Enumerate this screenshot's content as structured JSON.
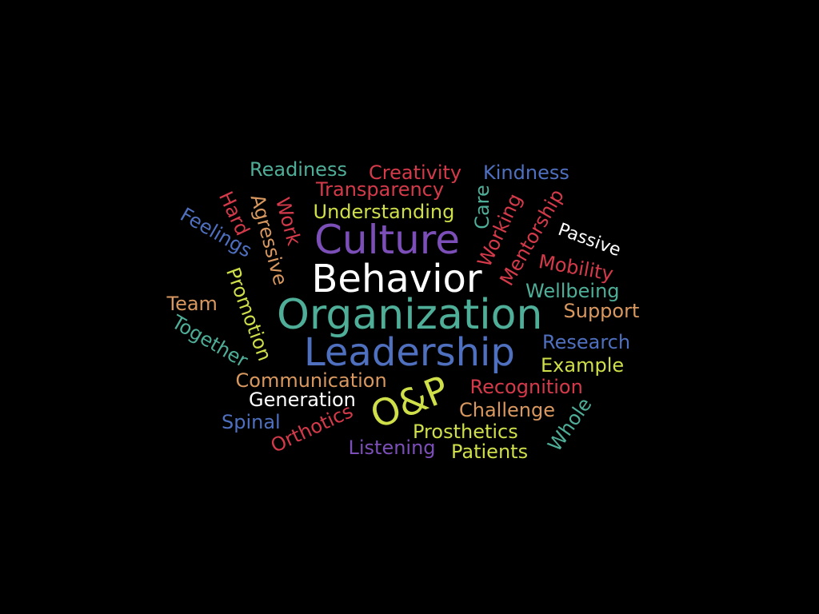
{
  "palette": {
    "background": "#000000",
    "teal": "#4fae98",
    "red": "#d43a4a",
    "blue": "#4f6fbf",
    "purple": "#7c4fb8",
    "lime": "#cfdf4a",
    "orange": "#d9985f",
    "white": "#ffffff"
  },
  "words": [
    {
      "id": "culture",
      "text": "Culture",
      "color": "purple"
    },
    {
      "id": "behavior",
      "text": "Behavior",
      "color": "white"
    },
    {
      "id": "organization",
      "text": "Organization",
      "color": "teal"
    },
    {
      "id": "leadership",
      "text": "Leadership",
      "color": "blue"
    },
    {
      "id": "op",
      "text": "O&P",
      "color": "lime"
    },
    {
      "id": "readiness",
      "text": "Readiness",
      "color": "teal"
    },
    {
      "id": "creativity",
      "text": "Creativity",
      "color": "red"
    },
    {
      "id": "kindness",
      "text": "Kindness",
      "color": "blue"
    },
    {
      "id": "transparency",
      "text": "Transparency",
      "color": "red"
    },
    {
      "id": "understanding",
      "text": "Understanding",
      "color": "lime"
    },
    {
      "id": "care",
      "text": "Care",
      "color": "teal"
    },
    {
      "id": "working",
      "text": "Working",
      "color": "red"
    },
    {
      "id": "mentorship",
      "text": "Mentorship",
      "color": "red"
    },
    {
      "id": "passive",
      "text": "Passive",
      "color": "white"
    },
    {
      "id": "mobility",
      "text": "Mobility",
      "color": "red"
    },
    {
      "id": "wellbeing",
      "text": "Wellbeing",
      "color": "teal"
    },
    {
      "id": "support",
      "text": "Support",
      "color": "orange"
    },
    {
      "id": "research",
      "text": "Research",
      "color": "blue"
    },
    {
      "id": "example",
      "text": "Example",
      "color": "lime"
    },
    {
      "id": "recognition",
      "text": "Recognition",
      "color": "red"
    },
    {
      "id": "challenge",
      "text": "Challenge",
      "color": "orange"
    },
    {
      "id": "prosthetics",
      "text": "Prosthetics",
      "color": "lime"
    },
    {
      "id": "patients",
      "text": "Patients",
      "color": "lime"
    },
    {
      "id": "whole",
      "text": "Whole",
      "color": "teal"
    },
    {
      "id": "listening",
      "text": "Listening",
      "color": "purple"
    },
    {
      "id": "orthotics",
      "text": "Orthotics",
      "color": "red"
    },
    {
      "id": "spinal",
      "text": "Spinal",
      "color": "blue"
    },
    {
      "id": "generation",
      "text": "Generation",
      "color": "white"
    },
    {
      "id": "communication",
      "text": "Communication",
      "color": "orange"
    },
    {
      "id": "together",
      "text": "Together",
      "color": "teal"
    },
    {
      "id": "team",
      "text": "Team",
      "color": "orange"
    },
    {
      "id": "promotion",
      "text": "Promotion",
      "color": "lime"
    },
    {
      "id": "feelings",
      "text": "Feelings",
      "color": "blue"
    },
    {
      "id": "hard",
      "text": "Hard",
      "color": "red"
    },
    {
      "id": "agressive",
      "text": "Agressive",
      "color": "orange"
    },
    {
      "id": "work",
      "text": "Work",
      "color": "red"
    }
  ]
}
